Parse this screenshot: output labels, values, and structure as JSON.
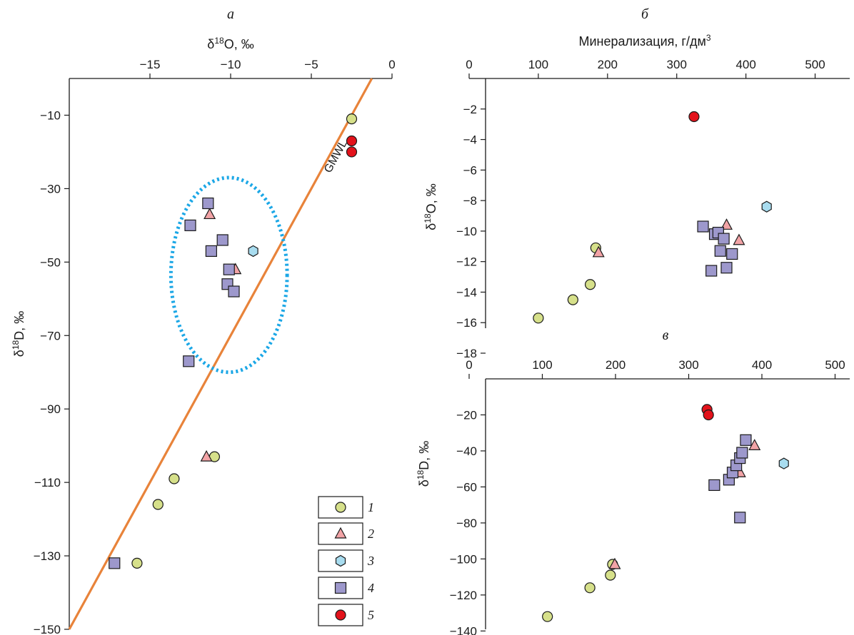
{
  "colors": {
    "series_1": "#d6e08a",
    "series_2": "#f2a3a6",
    "series_3": "#a8dcef",
    "series_4": "#9d98cc",
    "series_5": "#e3121b",
    "gmwl": "#e8833a",
    "ellipse": "#1ba7e6"
  },
  "chart_data": [
    {
      "panel_label": "а",
      "type": "scatter",
      "xlabel": "δ18O, ‰",
      "ylabel": "δ18D, ‰",
      "xlim": [
        -20,
        0
      ],
      "ylim": [
        -150,
        0
      ],
      "xticks": [
        "−15",
        "−10",
        "−5",
        "0"
      ],
      "yticks": [
        "−10",
        "−30",
        "−50",
        "−70",
        "−90",
        "−110",
        "−130",
        "−150"
      ],
      "line_label": "GMWL",
      "line": {
        "x": [
          -20,
          -1.25
        ],
        "y": [
          -150,
          0
        ]
      },
      "ellipse": {
        "cx": -10.1,
        "cy": -53.5,
        "rx": 3.6,
        "ry": 26.5,
        "style": "dotted"
      },
      "legend_position": "bottom-right",
      "series": [
        {
          "name": "1",
          "marker": "circle",
          "x": [
            -2.5,
            -14.5,
            -13.5,
            -11.0,
            -15.8
          ],
          "y": [
            -11,
            -116,
            -109,
            -103,
            -132
          ]
        },
        {
          "name": "2",
          "marker": "triangle",
          "x": [
            -11.3,
            -9.7,
            -11.5
          ],
          "y": [
            -37,
            -52,
            -103
          ]
        },
        {
          "name": "3",
          "marker": "hexagon",
          "x": [
            -8.6
          ],
          "y": [
            -47
          ]
        },
        {
          "name": "4",
          "marker": "square",
          "x": [
            -11.4,
            -12.5,
            -10.5,
            -11.2,
            -10.1,
            -10.2,
            -9.8,
            -12.6,
            -17.2
          ],
          "y": [
            -34,
            -40,
            -44,
            -47,
            -52,
            -56,
            -58,
            -77,
            -132
          ]
        },
        {
          "name": "5",
          "marker": "circle",
          "x": [
            -2.5,
            -2.5
          ],
          "y": [
            -17,
            -20
          ]
        }
      ]
    },
    {
      "panel_label": "б",
      "type": "scatter",
      "xlabel": "Минерализация, г/дм3",
      "ylabel": "δ18O, ‰",
      "xlim": [
        0,
        550
      ],
      "ylim": [
        -18,
        0
      ],
      "xticks": [
        "0",
        "100",
        "200",
        "300",
        "400",
        "500"
      ],
      "yticks": [
        "−2",
        "−4",
        "−6",
        "−8",
        "−10",
        "−12",
        "−14",
        "−16",
        "−18"
      ],
      "series": [
        {
          "name": "1",
          "marker": "circle",
          "x": [
            100,
            150,
            175,
            183
          ],
          "y": [
            -15.7,
            -14.5,
            -13.5,
            -11.1
          ]
        },
        {
          "name": "2",
          "marker": "triangle",
          "x": [
            187,
            372,
            390
          ],
          "y": [
            -11.4,
            -9.6,
            -10.6
          ]
        },
        {
          "name": "3",
          "marker": "hexagon",
          "x": [
            430
          ],
          "y": [
            -8.4
          ]
        },
        {
          "name": "4",
          "marker": "square",
          "x": [
            338,
            355,
            360,
            368,
            363,
            380,
            350,
            372
          ],
          "y": [
            -9.7,
            -10.2,
            -10.1,
            -10.5,
            -11.3,
            -11.5,
            -12.6,
            -12.4
          ]
        },
        {
          "name": "5",
          "marker": "circle",
          "x": [
            325
          ],
          "y": [
            -2.5
          ]
        }
      ]
    },
    {
      "panel_label": "в",
      "type": "scatter",
      "xlabel": "",
      "ylabel": "δ18D, ‰",
      "xlim": [
        0,
        520
      ],
      "ylim": [
        -145,
        0
      ],
      "xticks": [
        "0",
        "100",
        "200",
        "300",
        "400",
        "500"
      ],
      "yticks": [
        "−20",
        "−40",
        "−60",
        "−80",
        "−100",
        "−120",
        "−140"
      ],
      "series": [
        {
          "name": "1",
          "marker": "circle",
          "x": [
            107,
            165,
            193,
            196
          ],
          "y": [
            -132,
            -116,
            -109,
            -103
          ]
        },
        {
          "name": "2",
          "marker": "triangle",
          "x": [
            199,
            370,
            390
          ],
          "y": [
            -103,
            -52,
            -37
          ]
        },
        {
          "name": "3",
          "marker": "hexagon",
          "x": [
            430
          ],
          "y": [
            -47
          ]
        },
        {
          "name": "4",
          "marker": "square",
          "x": [
            335,
            355,
            360,
            365,
            370,
            373,
            378,
            370
          ],
          "y": [
            -59,
            -56,
            -52,
            -48,
            -44,
            -41,
            -34,
            -77
          ]
        },
        {
          "name": "5",
          "marker": "circle",
          "x": [
            325,
            327
          ],
          "y": [
            -17,
            -20
          ]
        }
      ]
    }
  ]
}
